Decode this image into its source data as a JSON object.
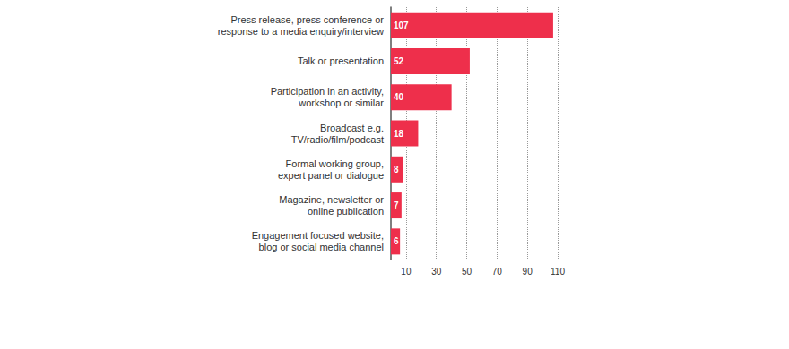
{
  "chart_data": {
    "type": "bar",
    "orientation": "horizontal",
    "categories": [
      "Press release, press conference or\nresponse to a media enquiry/interview",
      "Talk or presentation",
      "Participation in an activity,\nworkshop or similar",
      "Broadcast e.g.\nTV/radio/film/podcast",
      "Formal working group,\nexpert panel or dialogue",
      "Magazine, newsletter or\nonline publication",
      "Engagement focused website,\nblog or social media channel"
    ],
    "values": [
      107,
      52,
      40,
      18,
      8,
      7,
      6
    ],
    "color": "#ee2f4b",
    "xlim": [
      0,
      110
    ],
    "xticks": [
      10,
      30,
      50,
      70,
      90,
      110
    ],
    "grid": true,
    "data_labels": true
  }
}
